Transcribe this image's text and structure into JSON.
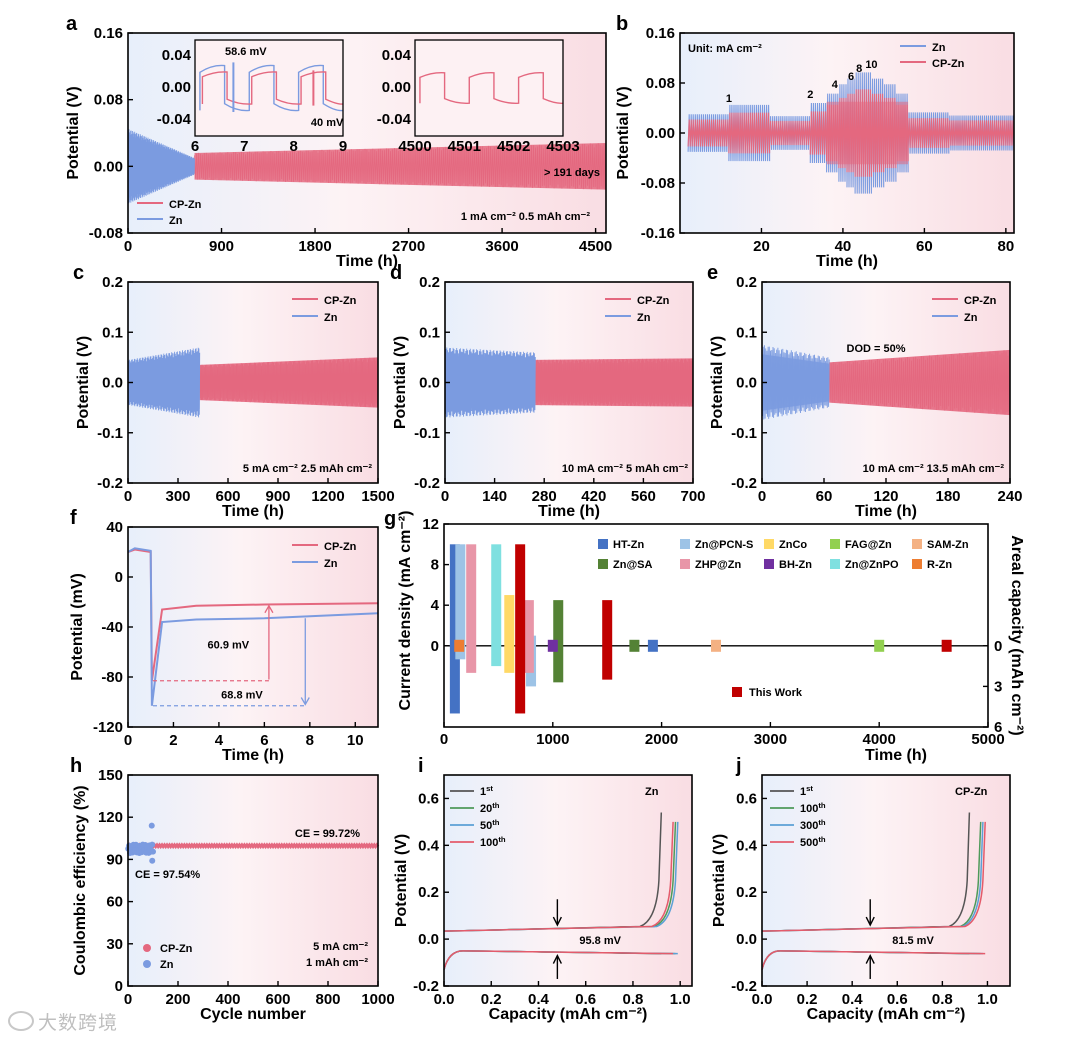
{
  "colors": {
    "zn": "#7b9be0",
    "cpzn": "#e4687f",
    "bg": "#fbeef1",
    "darkred": "#c0102c"
  },
  "watermark": "大数跨境",
  "chart_data": [
    {
      "id": "a",
      "letter": "a",
      "type": "line",
      "title": "",
      "xlabel": "Time (h)",
      "ylabel": "Potential (V)",
      "xlim": [
        0,
        4600
      ],
      "ylim": [
        -0.08,
        0.16
      ],
      "xticks": [
        0,
        900,
        1800,
        2700,
        3600,
        4500
      ],
      "yticks": [
        -0.08,
        0.0,
        0.08,
        0.16
      ],
      "ytick_labels": [
        "-0.08",
        "0.00",
        "0.08",
        "0.16"
      ],
      "series": [
        {
          "name": "CP-Zn",
          "x_range": [
            640,
            4600
          ],
          "amplitude_start": 0.016,
          "amplitude_end": 0.028
        },
        {
          "name": "Zn",
          "x_range": [
            0,
            640
          ],
          "amplitude_start": 0.045,
          "amplitude_end": 0.01
        }
      ],
      "legend": [
        "CP-Zn",
        "Zn"
      ],
      "legend_position": "bottom-left",
      "annotations": [
        "> 191 days",
        "1 mA cm⁻²   0.5 mAh cm⁻²"
      ],
      "insets": [
        {
          "xlim": [
            6,
            9
          ],
          "ylim": [
            -0.06,
            0.06
          ],
          "xticks": [
            6,
            7,
            8,
            9
          ],
          "yticks": [
            0.04,
            0.0,
            -0.04
          ],
          "ytick_labels": [
            "0.04",
            "0.00",
            "-0.04"
          ],
          "labels": [
            "58.6 mV",
            "40 mV"
          ]
        },
        {
          "xlim": [
            4500,
            4503
          ],
          "ylim": [
            -0.06,
            0.06
          ],
          "xticks": [
            4500,
            4501,
            4502,
            4503
          ],
          "yticks": [
            0.04,
            0.0,
            -0.04
          ],
          "ytick_labels": [
            "0.04",
            "0.00",
            "-0.04"
          ],
          "labels": []
        }
      ]
    },
    {
      "id": "b",
      "letter": "b",
      "type": "line",
      "xlabel": "Time (h)",
      "ylabel": "Potential (V)",
      "xlim": [
        0,
        82
      ],
      "ylim": [
        -0.16,
        0.16
      ],
      "xticks": [
        20,
        40,
        60,
        80
      ],
      "yticks": [
        -0.16,
        -0.08,
        0.0,
        0.08,
        0.16
      ],
      "ytick_labels": [
        "-0.16",
        "-0.08",
        "0.00",
        "0.08",
        "0.16"
      ],
      "series": [
        {
          "name": "Zn"
        },
        {
          "name": "CP-Zn"
        }
      ],
      "legend": [
        "Zn",
        "CP-Zn"
      ],
      "legend_position": "top-right",
      "annotations": [
        "Unit: mA cm⁻²"
      ],
      "rate_labels": [
        {
          "t": 12,
          "label": "1"
        },
        {
          "t": 32,
          "label": "2"
        },
        {
          "t": 38,
          "label": "4"
        },
        {
          "t": 42,
          "label": "6"
        },
        {
          "t": 44,
          "label": "8"
        },
        {
          "t": 47,
          "label": "10"
        }
      ]
    },
    {
      "id": "c",
      "letter": "c",
      "type": "line",
      "xlabel": "Time (h)",
      "ylabel": "Potential (V)",
      "xlim": [
        0,
        1500
      ],
      "ylim": [
        -0.2,
        0.2
      ],
      "xticks": [
        0,
        300,
        600,
        900,
        1200,
        1500
      ],
      "yticks": [
        -0.2,
        -0.1,
        0.0,
        0.1,
        0.2
      ],
      "ytick_labels": [
        "-0.2",
        "-0.1",
        "0.0",
        "0.1",
        "0.2"
      ],
      "series": [
        {
          "name": "CP-Zn",
          "x_range": [
            430,
            1500
          ],
          "amplitude_start": 0.035,
          "amplitude_end": 0.05
        },
        {
          "name": "Zn",
          "x_range": [
            0,
            430
          ],
          "amplitude_start": 0.045,
          "amplitude_end": 0.07
        }
      ],
      "legend": [
        "CP-Zn",
        "Zn"
      ],
      "annotations": [
        "5 mA cm⁻²   2.5 mAh cm⁻²"
      ]
    },
    {
      "id": "d",
      "letter": "d",
      "type": "line",
      "xlabel": "Time (h)",
      "ylabel": "Potential (V)",
      "xlim": [
        0,
        700
      ],
      "ylim": [
        -0.2,
        0.2
      ],
      "xticks": [
        0,
        140,
        280,
        420,
        560,
        700
      ],
      "yticks": [
        -0.2,
        -0.1,
        0.0,
        0.1,
        0.2
      ],
      "ytick_labels": [
        "-0.2",
        "-0.1",
        "0.0",
        "0.1",
        "0.2"
      ],
      "series": [
        {
          "name": "CP-Zn",
          "x_range": [
            255,
            700
          ],
          "amplitude_start": 0.045,
          "amplitude_end": 0.048
        },
        {
          "name": "Zn",
          "x_range": [
            0,
            255
          ],
          "amplitude_start": 0.07,
          "amplitude_end": 0.06
        }
      ],
      "legend": [
        "CP-Zn",
        "Zn"
      ],
      "annotations": [
        "10 mA cm⁻²   5 mAh cm⁻²"
      ]
    },
    {
      "id": "e",
      "letter": "e",
      "type": "line",
      "xlabel": "Time (h)",
      "ylabel": "Potential (V)",
      "xlim": [
        0,
        240
      ],
      "ylim": [
        -0.2,
        0.2
      ],
      "xticks": [
        0,
        60,
        120,
        180,
        240
      ],
      "yticks": [
        -0.2,
        -0.1,
        0.0,
        0.1,
        0.2
      ],
      "ytick_labels": [
        "-0.2",
        "-0.1",
        "0.0",
        "0.1",
        "0.2"
      ],
      "series": [
        {
          "name": "CP-Zn",
          "x_range": [
            65,
            240
          ],
          "amplitude_start": 0.04,
          "amplitude_end": 0.065
        },
        {
          "name": "Zn",
          "x_range": [
            0,
            65
          ],
          "amplitude_start": 0.075,
          "amplitude_end": 0.05
        }
      ],
      "legend": [
        "CP-Zn",
        "Zn"
      ],
      "annotations": [
        "DOD = 50%",
        "10 mA cm⁻²   13.5 mAh cm⁻²"
      ]
    },
    {
      "id": "f",
      "letter": "f",
      "type": "line",
      "xlabel": "Time (h)",
      "ylabel": "Potential (mV)",
      "xlim": [
        0,
        11
      ],
      "ylim": [
        -120,
        40
      ],
      "xticks": [
        0,
        2,
        4,
        6,
        8,
        10
      ],
      "yticks": [
        -120,
        -80,
        -40,
        0,
        40
      ],
      "ytick_labels": [
        "-120",
        "-80",
        "-40",
        "0",
        "40"
      ],
      "series": [
        {
          "name": "CP-Zn",
          "x": [
            0,
            0.3,
            1,
            1.05,
            1.5,
            3,
            6,
            11
          ],
          "y": [
            20,
            22,
            20,
            -83,
            -26,
            -23,
            -22,
            -21
          ]
        },
        {
          "name": "Zn",
          "x": [
            0,
            0.3,
            1,
            1.05,
            1.5,
            3,
            6,
            11
          ],
          "y": [
            20,
            23,
            21,
            -103,
            -36,
            -34,
            -33,
            -29
          ]
        }
      ],
      "legend": [
        "CP-Zn",
        "Zn"
      ],
      "annotations": [
        "60.9 mV",
        "68.8 mV"
      ]
    },
    {
      "id": "g",
      "letter": "g",
      "type": "bar",
      "xlabel": "Time (h)",
      "ylabel": "Current density (mA cm⁻²)",
      "y2label": "Areal capacity (mAh cm⁻²)",
      "xlim": [
        0,
        5000
      ],
      "ylim": [
        -8,
        12
      ],
      "xticks": [
        0,
        1000,
        2000,
        3000,
        4000,
        5000
      ],
      "yticks": [
        0,
        4,
        8,
        12
      ],
      "ytick_labels": [
        "0",
        "4",
        "8",
        "12"
      ],
      "y2ticks": [
        0,
        3,
        6
      ],
      "y2tick_labels": [
        "0",
        "3",
        "6"
      ],
      "series": [
        {
          "name": "HT-Zn",
          "color": "#4472c4",
          "points": [
            {
              "t": 100,
              "cd": 10,
              "ac": 5
            },
            {
              "t": 1920,
              "cd": 0.5,
              "ac": 0.5
            }
          ]
        },
        {
          "name": "Zn@PCN-S",
          "color": "#9dc3e6",
          "points": [
            {
              "t": 150,
              "cd": 10,
              "ac": 1
            },
            {
              "t": 800,
              "cd": 1,
              "ac": 3
            }
          ]
        },
        {
          "name": "ZnCo",
          "color": "#ffd966",
          "points": [
            {
              "t": 600,
              "cd": 5,
              "ac": 2
            }
          ]
        },
        {
          "name": "FAG@Zn",
          "color": "#92d050",
          "points": [
            {
              "t": 4000,
              "cd": 0.5,
              "ac": 0.5
            }
          ]
        },
        {
          "name": "SAM-Zn",
          "color": "#f4b183",
          "points": [
            {
              "t": 2500,
              "cd": 0.5,
              "ac": 0.5
            }
          ]
        },
        {
          "name": "Zn@SA",
          "color": "#548235",
          "points": [
            {
              "t": 1050,
              "cd": 4.5,
              "ac": 2.7
            },
            {
              "t": 1750,
              "cd": 0.3,
              "ac": 0.3
            }
          ]
        },
        {
          "name": "ZHP@Zn",
          "color": "#e896a8",
          "points": [
            {
              "t": 250,
              "cd": 10,
              "ac": 2
            },
            {
              "t": 780,
              "cd": 4.5,
              "ac": 2
            }
          ]
        },
        {
          "name": "BH-Zn",
          "color": "#7030a0",
          "points": [
            {
              "t": 1000,
              "cd": 0.5,
              "ac": 0.5
            }
          ]
        },
        {
          "name": "Zn@ZnPO",
          "color": "#7fe0e0",
          "points": [
            {
              "t": 480,
              "cd": 10,
              "ac": 1.5
            }
          ]
        },
        {
          "name": "R-Zn",
          "color": "#ed7d31",
          "points": [
            {
              "t": 140,
              "cd": 0.5,
              "ac": 0.5
            }
          ]
        },
        {
          "name": "This Work",
          "color": "#c00000",
          "points": [
            {
              "t": 700,
              "cd": 10,
              "ac": 5
            },
            {
              "t": 1500,
              "cd": 4.5,
              "ac": 2.5
            },
            {
              "t": 4620,
              "cd": 0.5,
              "ac": 0.5
            }
          ]
        }
      ]
    },
    {
      "id": "h",
      "letter": "h",
      "type": "scatter",
      "xlabel": "Cycle number",
      "ylabel": "Coulombic efficiency (%)",
      "xlim": [
        0,
        1000
      ],
      "ylim": [
        0,
        150
      ],
      "xticks": [
        0,
        200,
        400,
        600,
        800,
        1000
      ],
      "yticks": [
        0,
        30,
        60,
        90,
        120,
        150
      ],
      "ytick_labels": [
        "0",
        "30",
        "60",
        "90",
        "120",
        "150"
      ],
      "series": [
        {
          "name": "CP-Zn",
          "mean": 99.72,
          "x_range": [
            1,
            1000
          ]
        },
        {
          "name": "Zn",
          "mean": 97.54,
          "x_range": [
            1,
            100
          ]
        }
      ],
      "legend": [
        "CP-Zn",
        "Zn"
      ],
      "annotations": [
        "CE = 99.72%",
        "CE = 97.54%",
        "5 mA cm⁻²",
        "1 mAh cm⁻²"
      ]
    },
    {
      "id": "i",
      "letter": "i",
      "type": "line",
      "title": "Zn",
      "xlabel": "Capacity (mAh cm⁻²)",
      "ylabel": "Potential (V)",
      "xlim": [
        0,
        1.05
      ],
      "ylim": [
        -0.2,
        0.7
      ],
      "xticks": [
        0.0,
        0.2,
        0.4,
        0.6,
        0.8,
        1.0
      ],
      "yticks": [
        -0.2,
        0.0,
        0.2,
        0.4,
        0.6
      ],
      "xtick_labels": [
        "0.0",
        "0.2",
        "0.4",
        "0.6",
        "0.8",
        "1.0"
      ],
      "ytick_labels": [
        "-0.2",
        "0.0",
        "0.2",
        "0.4",
        "0.6"
      ],
      "series": [
        {
          "name": "1st",
          "end": 0.92
        },
        {
          "name": "20th",
          "end": 0.98
        },
        {
          "name": "50th",
          "end": 0.99
        },
        {
          "name": "100th",
          "end": 0.97
        }
      ],
      "legend": [
        {
          "n": "1",
          "s": "st"
        },
        {
          "n": "20",
          "s": "th"
        },
        {
          "n": "50",
          "s": "th"
        },
        {
          "n": "100",
          "s": "th"
        }
      ],
      "annotations": [
        "95.8 mV"
      ]
    },
    {
      "id": "j",
      "letter": "j",
      "type": "line",
      "title": "CP-Zn",
      "xlabel": "Capacity (mAh cm⁻²)",
      "ylabel": "Potential (V)",
      "xlim": [
        0,
        1.1
      ],
      "ylim": [
        -0.2,
        0.7
      ],
      "xticks": [
        0.0,
        0.2,
        0.4,
        0.6,
        0.8,
        1.0
      ],
      "yticks": [
        -0.2,
        0.0,
        0.2,
        0.4,
        0.6
      ],
      "xtick_labels": [
        "0.0",
        "0.2",
        "0.4",
        "0.6",
        "0.8",
        "1.0"
      ],
      "ytick_labels": [
        "-0.2",
        "0.0",
        "0.2",
        "0.4",
        "0.6"
      ],
      "series": [
        {
          "name": "1st",
          "end": 0.92
        },
        {
          "name": "100th",
          "end": 0.97
        },
        {
          "name": "300th",
          "end": 0.98
        },
        {
          "name": "500th",
          "end": 0.99
        }
      ],
      "legend": [
        {
          "n": "1",
          "s": "st"
        },
        {
          "n": "100",
          "s": "th"
        },
        {
          "n": "300",
          "s": "th"
        },
        {
          "n": "500",
          "s": "th"
        }
      ],
      "annotations": [
        "81.5 mV"
      ]
    }
  ]
}
